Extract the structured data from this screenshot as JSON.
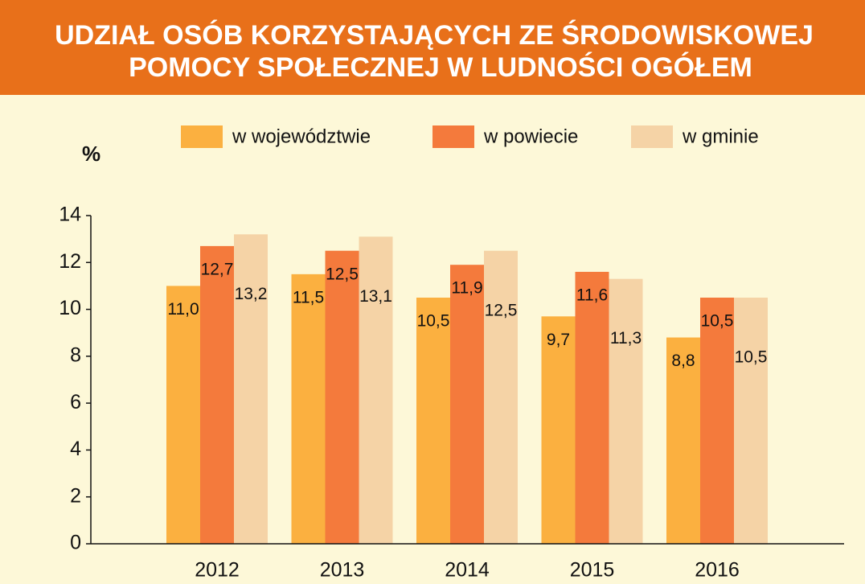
{
  "chart_data": {
    "type": "bar",
    "title": [
      "UDZIAŁ OSÓB KORZYSTAJĄCYCH ZE ŚRODOWISKOWEJ",
      "POMOCY SPOŁECZNEJ W LUDNOŚCI OGÓŁEM"
    ],
    "ylabel": "%",
    "categories": [
      "2012",
      "2013",
      "2014",
      "2015",
      "2016"
    ],
    "series": [
      {
        "name": "w województwie",
        "color": "#fbb040",
        "values": [
          11.0,
          11.5,
          10.5,
          9.7,
          8.8
        ],
        "value_labels": [
          "11,0",
          "11,5",
          "10,5",
          "9,7",
          "8,8"
        ]
      },
      {
        "name": "w powiecie",
        "color": "#f47a3c",
        "values": [
          12.7,
          12.5,
          11.9,
          11.6,
          10.5
        ],
        "value_labels": [
          "12,7",
          "12,5",
          "11,9",
          "11,6",
          "10,5"
        ]
      },
      {
        "name": "w gminie",
        "color": "#f5d3a6",
        "values": [
          13.2,
          13.1,
          12.5,
          11.3,
          10.5
        ],
        "value_labels": [
          "13,2",
          "13,1",
          "12,5",
          "11,3",
          "10,5"
        ]
      }
    ],
    "ylim": [
      0,
      14
    ],
    "yticks": [
      0,
      2,
      4,
      6,
      8,
      10,
      12,
      14
    ],
    "legend": "top"
  }
}
